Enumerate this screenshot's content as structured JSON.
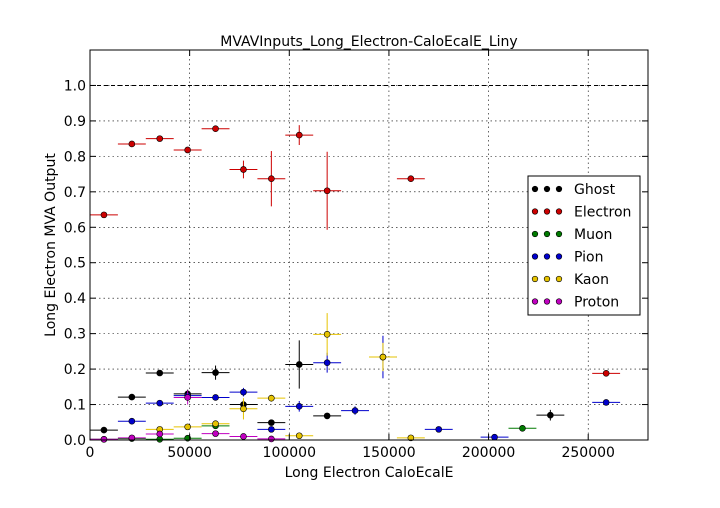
{
  "chart_data": {
    "type": "scatter",
    "title": "MVAVInputs_Long_Electron-CaloEcalE_Liny",
    "xlabel": "Long Electron CaloEcalE",
    "ylabel": "Long Electron MVA Output",
    "xlim": [
      0,
      280000
    ],
    "ylim": [
      0,
      1.1
    ],
    "xticks": [
      0,
      50000,
      100000,
      150000,
      200000,
      250000
    ],
    "xtick_labels": [
      "0",
      "50000",
      "100000",
      "150000",
      "200000",
      "250000"
    ],
    "yticks": [
      0.0,
      0.1,
      0.2,
      0.3,
      0.4,
      0.5,
      0.6,
      0.7,
      0.8,
      0.9,
      1.0
    ],
    "ytick_labels": [
      "0.0",
      "0.1",
      "0.2",
      "0.3",
      "0.4",
      "0.5",
      "0.6",
      "0.7",
      "0.8",
      "0.9",
      "1.0"
    ],
    "reference_line": 1.0,
    "grid": true,
    "legend_position": "right",
    "series": [
      {
        "name": "Ghost",
        "color": "#000000",
        "points": [
          {
            "x": 7000,
            "y": 0.028,
            "xerr": 7000,
            "yerr": 0.004
          },
          {
            "x": 21000,
            "y": 0.121,
            "xerr": 7000,
            "yerr": 0.004
          },
          {
            "x": 35000,
            "y": 0.189,
            "xerr": 7000,
            "yerr": 0.004
          },
          {
            "x": 49000,
            "y": 0.13,
            "xerr": 7000,
            "yerr": 0.012
          },
          {
            "x": 63000,
            "y": 0.19,
            "xerr": 7000,
            "yerr": 0.02
          },
          {
            "x": 77000,
            "y": 0.1,
            "xerr": 7000,
            "yerr": 0.012
          },
          {
            "x": 91000,
            "y": 0.049,
            "xerr": 7000,
            "yerr": 0.006
          },
          {
            "x": 105000,
            "y": 0.213,
            "xerr": 7000,
            "yerr": 0.068
          },
          {
            "x": 119000,
            "y": 0.068,
            "xerr": 7000,
            "yerr": 0.004
          },
          {
            "x": 231000,
            "y": 0.07,
            "xerr": 7000,
            "yerr": 0.015
          }
        ]
      },
      {
        "name": "Electron",
        "color": "#cc0000",
        "points": [
          {
            "x": 7000,
            "y": 0.635,
            "xerr": 7000,
            "yerr": 0.004
          },
          {
            "x": 21000,
            "y": 0.835,
            "xerr": 7000,
            "yerr": 0.004
          },
          {
            "x": 35000,
            "y": 0.85,
            "xerr": 7000,
            "yerr": 0.004
          },
          {
            "x": 49000,
            "y": 0.818,
            "xerr": 7000,
            "yerr": 0.006
          },
          {
            "x": 63000,
            "y": 0.878,
            "xerr": 7000,
            "yerr": 0.006
          },
          {
            "x": 77000,
            "y": 0.763,
            "xerr": 7000,
            "yerr": 0.025
          },
          {
            "x": 91000,
            "y": 0.737,
            "xerr": 7000,
            "yerr": 0.078
          },
          {
            "x": 105000,
            "y": 0.86,
            "xerr": 7000,
            "yerr": 0.028
          },
          {
            "x": 119000,
            "y": 0.703,
            "xerr": 7000,
            "yerr": 0.11
          },
          {
            "x": 161000,
            "y": 0.737,
            "xerr": 7000,
            "yerr": 0.006
          },
          {
            "x": 259000,
            "y": 0.188,
            "xerr": 7000,
            "yerr": 0.004
          }
        ]
      },
      {
        "name": "Muon",
        "color": "#007a00",
        "points": [
          {
            "x": 7000,
            "y": 0.002,
            "xerr": 7000,
            "yerr": 0.002
          },
          {
            "x": 21000,
            "y": 0.004,
            "xerr": 7000,
            "yerr": 0.002
          },
          {
            "x": 35000,
            "y": 0.002,
            "xerr": 7000,
            "yerr": 0.002
          },
          {
            "x": 49000,
            "y": 0.005,
            "xerr": 7000,
            "yerr": 0.003
          },
          {
            "x": 63000,
            "y": 0.04,
            "xerr": 7000,
            "yerr": 0.008
          },
          {
            "x": 217000,
            "y": 0.033,
            "xerr": 7000,
            "yerr": 0.008
          }
        ]
      },
      {
        "name": "Pion",
        "color": "#0000cc",
        "points": [
          {
            "x": 21000,
            "y": 0.053,
            "xerr": 7000,
            "yerr": 0.004
          },
          {
            "x": 35000,
            "y": 0.104,
            "xerr": 7000,
            "yerr": 0.004
          },
          {
            "x": 49000,
            "y": 0.125,
            "xerr": 7000,
            "yerr": 0.006
          },
          {
            "x": 63000,
            "y": 0.12,
            "xerr": 7000,
            "yerr": 0.006
          },
          {
            "x": 77000,
            "y": 0.135,
            "xerr": 7000,
            "yerr": 0.012
          },
          {
            "x": 91000,
            "y": 0.03,
            "xerr": 7000,
            "yerr": 0.008
          },
          {
            "x": 105000,
            "y": 0.095,
            "xerr": 7000,
            "yerr": 0.015
          },
          {
            "x": 119000,
            "y": 0.218,
            "xerr": 7000,
            "yerr": 0.028
          },
          {
            "x": 133000,
            "y": 0.083,
            "xerr": 7000,
            "yerr": 0.012
          },
          {
            "x": 147000,
            "y": 0.234,
            "xerr": 7000,
            "yerr": 0.06
          },
          {
            "x": 175000,
            "y": 0.03,
            "xerr": 7000,
            "yerr": 0.006
          },
          {
            "x": 203000,
            "y": 0.008,
            "xerr": 7000,
            "yerr": 0.004
          },
          {
            "x": 259000,
            "y": 0.106,
            "xerr": 7000,
            "yerr": 0.004
          }
        ]
      },
      {
        "name": "Kaon",
        "color": "#e6c300",
        "points": [
          {
            "x": 35000,
            "y": 0.03,
            "xerr": 7000,
            "yerr": 0.006
          },
          {
            "x": 49000,
            "y": 0.037,
            "xerr": 7000,
            "yerr": 0.006
          },
          {
            "x": 63000,
            "y": 0.046,
            "xerr": 7000,
            "yerr": 0.008
          },
          {
            "x": 77000,
            "y": 0.088,
            "xerr": 7000,
            "yerr": 0.03
          },
          {
            "x": 91000,
            "y": 0.118,
            "xerr": 7000,
            "yerr": 0.01
          },
          {
            "x": 105000,
            "y": 0.012,
            "xerr": 7000,
            "yerr": 0.008
          },
          {
            "x": 119000,
            "y": 0.298,
            "xerr": 7000,
            "yerr": 0.06
          },
          {
            "x": 147000,
            "y": 0.234,
            "xerr": 7000,
            "yerr": 0.04
          },
          {
            "x": 161000,
            "y": 0.006,
            "xerr": 7000,
            "yerr": 0.006
          }
        ]
      },
      {
        "name": "Proton",
        "color": "#c000c0",
        "points": [
          {
            "x": 7000,
            "y": 0.002,
            "xerr": 7000,
            "yerr": 0.002
          },
          {
            "x": 21000,
            "y": 0.006,
            "xerr": 7000,
            "yerr": 0.003
          },
          {
            "x": 35000,
            "y": 0.017,
            "xerr": 7000,
            "yerr": 0.006
          },
          {
            "x": 49000,
            "y": 0.12,
            "xerr": 7000,
            "yerr": 0.02
          },
          {
            "x": 63000,
            "y": 0.018,
            "xerr": 7000,
            "yerr": 0.008
          },
          {
            "x": 77000,
            "y": 0.01,
            "xerr": 7000,
            "yerr": 0.006
          },
          {
            "x": 91000,
            "y": 0.003,
            "xerr": 7000,
            "yerr": 0.003
          }
        ]
      }
    ]
  }
}
